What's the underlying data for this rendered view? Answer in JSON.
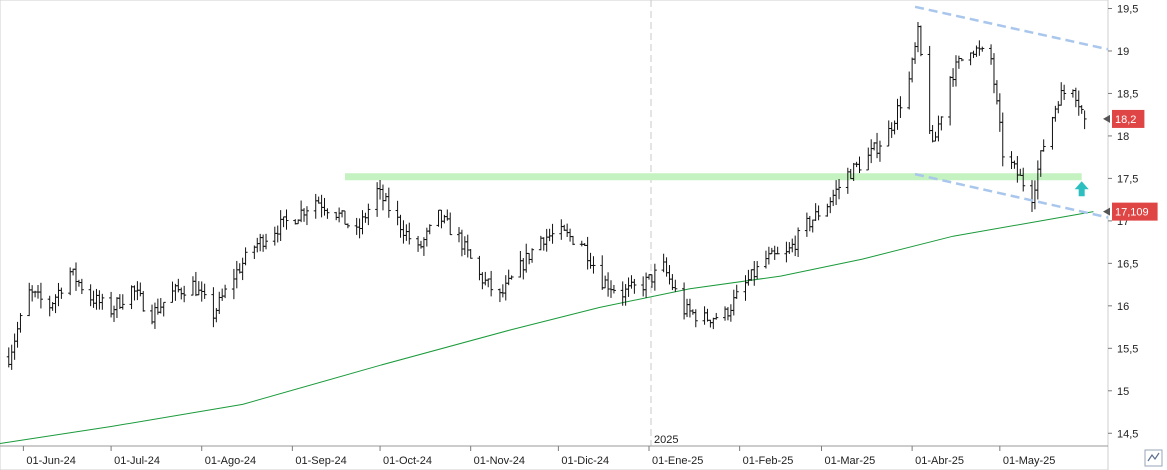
{
  "chart_data": {
    "type": "ohlc",
    "title": "",
    "xlabel": "",
    "ylabel": "",
    "ylim": [
      14.35,
      19.6
    ],
    "y_ticks": [
      "14,5",
      "15",
      "15,5",
      "16",
      "16,5",
      "17",
      "17,5",
      "18",
      "18,5",
      "19",
      "19,5"
    ],
    "y_tick_values": [
      14.5,
      15,
      15.5,
      16,
      16.5,
      17,
      17.5,
      18,
      18.5,
      19,
      19.5
    ],
    "x_range": [
      "2024-05-24",
      "2025-06-07"
    ],
    "x_ticks": [
      {
        "label": "01-Jun-24",
        "date": "2024-06-01"
      },
      {
        "label": "01-Jul-24",
        "date": "2024-07-01"
      },
      {
        "label": "01-Ago-24",
        "date": "2024-08-01"
      },
      {
        "label": "01-Sep-24",
        "date": "2024-09-01"
      },
      {
        "label": "01-Oct-24",
        "date": "2024-10-01"
      },
      {
        "label": "01-Nov-24",
        "date": "2024-11-01"
      },
      {
        "label": "01-Dic-24",
        "date": "2024-12-01"
      },
      {
        "label": "01-Ene-25",
        "date": "2025-01-01"
      },
      {
        "label": "01-Feb-25",
        "date": "2025-02-01"
      },
      {
        "label": "01-Mar-25",
        "date": "2025-03-01"
      },
      {
        "label": "01-Abr-25",
        "date": "2025-04-01"
      },
      {
        "label": "01-May-25",
        "date": "2025-05-01"
      }
    ],
    "year_separator": {
      "label": "2025",
      "date": "2025-01-01"
    },
    "price_anchors": [
      [
        "2024-05-27",
        15.4
      ],
      [
        "2024-06-03",
        16.15
      ],
      [
        "2024-06-10",
        16.0
      ],
      [
        "2024-06-17",
        16.4
      ],
      [
        "2024-06-24",
        16.1
      ],
      [
        "2024-07-01",
        15.95
      ],
      [
        "2024-07-08",
        16.2
      ],
      [
        "2024-07-15",
        15.9
      ],
      [
        "2024-07-22",
        16.15
      ],
      [
        "2024-07-29",
        16.25
      ],
      [
        "2024-08-05",
        15.9
      ],
      [
        "2024-08-12",
        16.35
      ],
      [
        "2024-08-19",
        16.7
      ],
      [
        "2024-08-26",
        16.9
      ],
      [
        "2024-09-02",
        17.05
      ],
      [
        "2024-09-09",
        17.25
      ],
      [
        "2024-09-16",
        17.1
      ],
      [
        "2024-09-23",
        16.85
      ],
      [
        "2024-09-30",
        17.35
      ],
      [
        "2024-10-07",
        17.0
      ],
      [
        "2024-10-14",
        16.65
      ],
      [
        "2024-10-21",
        17.05
      ],
      [
        "2024-10-28",
        16.8
      ],
      [
        "2024-11-04",
        16.35
      ],
      [
        "2024-11-11",
        16.1
      ],
      [
        "2024-11-18",
        16.45
      ],
      [
        "2024-11-25",
        16.8
      ],
      [
        "2024-12-02",
        16.85
      ],
      [
        "2024-12-09",
        16.75
      ],
      [
        "2024-12-16",
        16.3
      ],
      [
        "2024-12-23",
        16.15
      ],
      [
        "2024-12-30",
        16.25
      ],
      [
        "2025-01-06",
        16.45
      ],
      [
        "2025-01-13",
        15.95
      ],
      [
        "2025-01-20",
        15.85
      ],
      [
        "2025-01-27",
        15.9
      ],
      [
        "2025-02-03",
        16.25
      ],
      [
        "2025-02-10",
        16.55
      ],
      [
        "2025-02-17",
        16.6
      ],
      [
        "2025-02-24",
        16.95
      ],
      [
        "2025-03-03",
        17.2
      ],
      [
        "2025-03-10",
        17.55
      ],
      [
        "2025-03-17",
        17.75
      ],
      [
        "2025-03-24",
        18.05
      ],
      [
        "2025-03-31",
        18.65
      ],
      [
        "2025-04-03",
        19.2
      ],
      [
        "2025-04-08",
        17.85
      ],
      [
        "2025-04-14",
        18.7
      ],
      [
        "2025-04-21",
        19.05
      ],
      [
        "2025-04-28",
        18.9
      ],
      [
        "2025-05-02",
        17.8
      ],
      [
        "2025-05-07",
        17.55
      ],
      [
        "2025-05-12",
        17.3
      ],
      [
        "2025-05-16",
        17.9
      ],
      [
        "2025-05-21",
        18.45
      ],
      [
        "2025-05-26",
        18.6
      ],
      [
        "2025-05-30",
        18.2
      ]
    ],
    "series": [
      {
        "name": "",
        "type": "moving-average",
        "color": "#1a9a3a",
        "points": [
          [
            "2024-05-24",
            14.38
          ],
          [
            "2024-07-01",
            14.58
          ],
          [
            "2024-08-15",
            14.84
          ],
          [
            "2024-10-01",
            15.3
          ],
          [
            "2024-11-15",
            15.72
          ],
          [
            "2024-12-15",
            15.98
          ],
          [
            "2025-01-15",
            16.2
          ],
          [
            "2025-02-15",
            16.35
          ],
          [
            "2025-03-15",
            16.55
          ],
          [
            "2025-04-15",
            16.82
          ],
          [
            "2025-05-15",
            17.0
          ],
          [
            "2025-06-02",
            17.109
          ]
        ]
      }
    ],
    "annotations": [
      {
        "type": "horizontal-band",
        "value": 17.52,
        "from": "2024-09-19",
        "to": "2025-05-29",
        "color": "#c4f2c0"
      },
      {
        "type": "trendline",
        "from": [
          "2025-04-02",
          19.52
        ],
        "to": [
          "2025-06-07",
          19.02
        ],
        "color": "#a9c6ec",
        "dashed": true
      },
      {
        "type": "trendline",
        "from": [
          "2025-04-02",
          17.55
        ],
        "to": [
          "2025-06-07",
          17.04
        ],
        "color": "#a9c6ec",
        "dashed": true
      },
      {
        "type": "up-arrow",
        "date": "2025-05-29",
        "value": 17.36,
        "color": "#2dbfbf"
      }
    ],
    "price_tags": [
      {
        "label": "18,2",
        "value": 18.2,
        "color": "#e04545"
      },
      {
        "label": "17,109",
        "value": 17.109,
        "color": "#e04545"
      }
    ],
    "grid": false,
    "legend": "none"
  }
}
